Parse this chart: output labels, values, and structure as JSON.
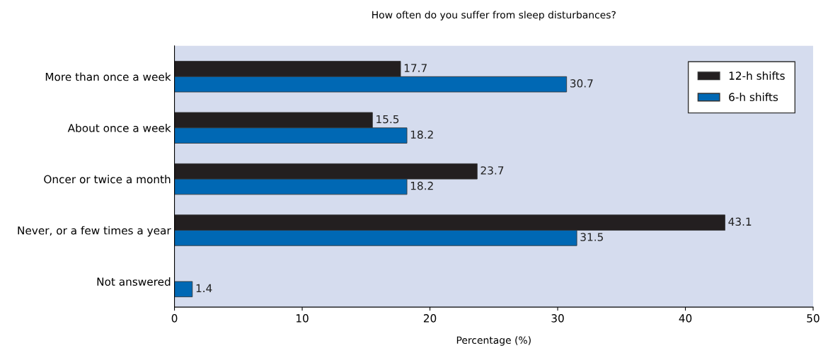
{
  "chart_data": {
    "type": "bar",
    "orientation": "horizontal",
    "title": "How often do you suffer from sleep disturbances?",
    "xlabel": "Percentage (%)",
    "categories": [
      "More than once a week",
      "About once a week",
      "Oncer or twice a month",
      "Never, or a few times a year",
      "Not answered"
    ],
    "series": [
      {
        "name": "12-h shifts",
        "color": "#231f20",
        "values": [
          17.7,
          15.5,
          23.7,
          43.1,
          null
        ]
      },
      {
        "name": "6-h shifts",
        "color": "#0068b4",
        "values": [
          30.7,
          18.2,
          18.2,
          31.5,
          1.4
        ]
      }
    ],
    "xlim": [
      0,
      50
    ],
    "xticks": [
      0,
      10,
      20,
      30,
      40,
      50
    ],
    "data_labels": true,
    "legend": "top right",
    "grid": false
  }
}
